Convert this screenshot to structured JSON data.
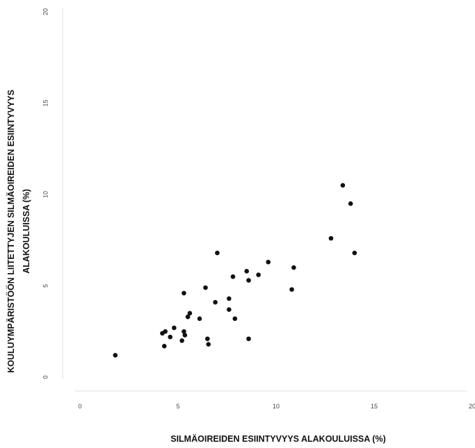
{
  "chart_data": {
    "type": "scatter",
    "xlabel": "SILMÄOIREIDEN ESIINTYVYYS ALAKOULUISSA (%)",
    "ylabel_lines": [
      "KOULUYMPÄRISTÖÖN LIITETTYJEN SILMÄOIREIDEN ESIINTYVYYS",
      "ALAKOULUISSA (%)"
    ],
    "xlim": [
      0,
      20
    ],
    "ylim": [
      0,
      20
    ],
    "x_ticks": [
      "0",
      "5",
      "10",
      "15",
      "20"
    ],
    "y_ticks": [
      "0",
      "5",
      "10",
      "15",
      "20"
    ],
    "grid": false,
    "points": [
      {
        "x": 1.8,
        "y": 1.2
      },
      {
        "x": 4.2,
        "y": 2.4
      },
      {
        "x": 4.3,
        "y": 1.7
      },
      {
        "x": 4.35,
        "y": 2.5
      },
      {
        "x": 4.6,
        "y": 2.2
      },
      {
        "x": 4.8,
        "y": 2.7
      },
      {
        "x": 5.2,
        "y": 2.0
      },
      {
        "x": 5.3,
        "y": 4.6
      },
      {
        "x": 5.3,
        "y": 2.5
      },
      {
        "x": 5.35,
        "y": 2.3
      },
      {
        "x": 5.5,
        "y": 3.3
      },
      {
        "x": 5.6,
        "y": 3.5
      },
      {
        "x": 6.1,
        "y": 3.2
      },
      {
        "x": 6.4,
        "y": 4.9
      },
      {
        "x": 6.5,
        "y": 2.1
      },
      {
        "x": 6.55,
        "y": 1.8
      },
      {
        "x": 6.9,
        "y": 4.1
      },
      {
        "x": 7.0,
        "y": 6.8
      },
      {
        "x": 7.6,
        "y": 4.3
      },
      {
        "x": 7.6,
        "y": 3.7
      },
      {
        "x": 7.8,
        "y": 5.5
      },
      {
        "x": 7.9,
        "y": 3.2
      },
      {
        "x": 8.5,
        "y": 5.8
      },
      {
        "x": 8.6,
        "y": 5.3
      },
      {
        "x": 8.6,
        "y": 2.1
      },
      {
        "x": 9.1,
        "y": 5.6
      },
      {
        "x": 9.6,
        "y": 6.3
      },
      {
        "x": 10.8,
        "y": 4.8
      },
      {
        "x": 10.9,
        "y": 6.0
      },
      {
        "x": 12.8,
        "y": 7.6
      },
      {
        "x": 13.4,
        "y": 10.5
      },
      {
        "x": 13.8,
        "y": 9.5
      },
      {
        "x": 14.0,
        "y": 6.8
      }
    ],
    "point_color": "#111111",
    "axis_color": "#dcdcdc"
  }
}
